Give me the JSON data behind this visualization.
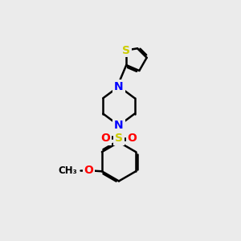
{
  "bg_color": "#ebebeb",
  "bond_color": "#000000",
  "nitrogen_color": "#0000ff",
  "sulfur_th_color": "#cccc00",
  "sulfur_so2_color": "#cccc00",
  "oxygen_color": "#ff0000",
  "line_width": 1.8,
  "fig_width": 3.0,
  "fig_height": 3.0,
  "xlim": [
    0,
    10
  ],
  "ylim": [
    0,
    10
  ]
}
